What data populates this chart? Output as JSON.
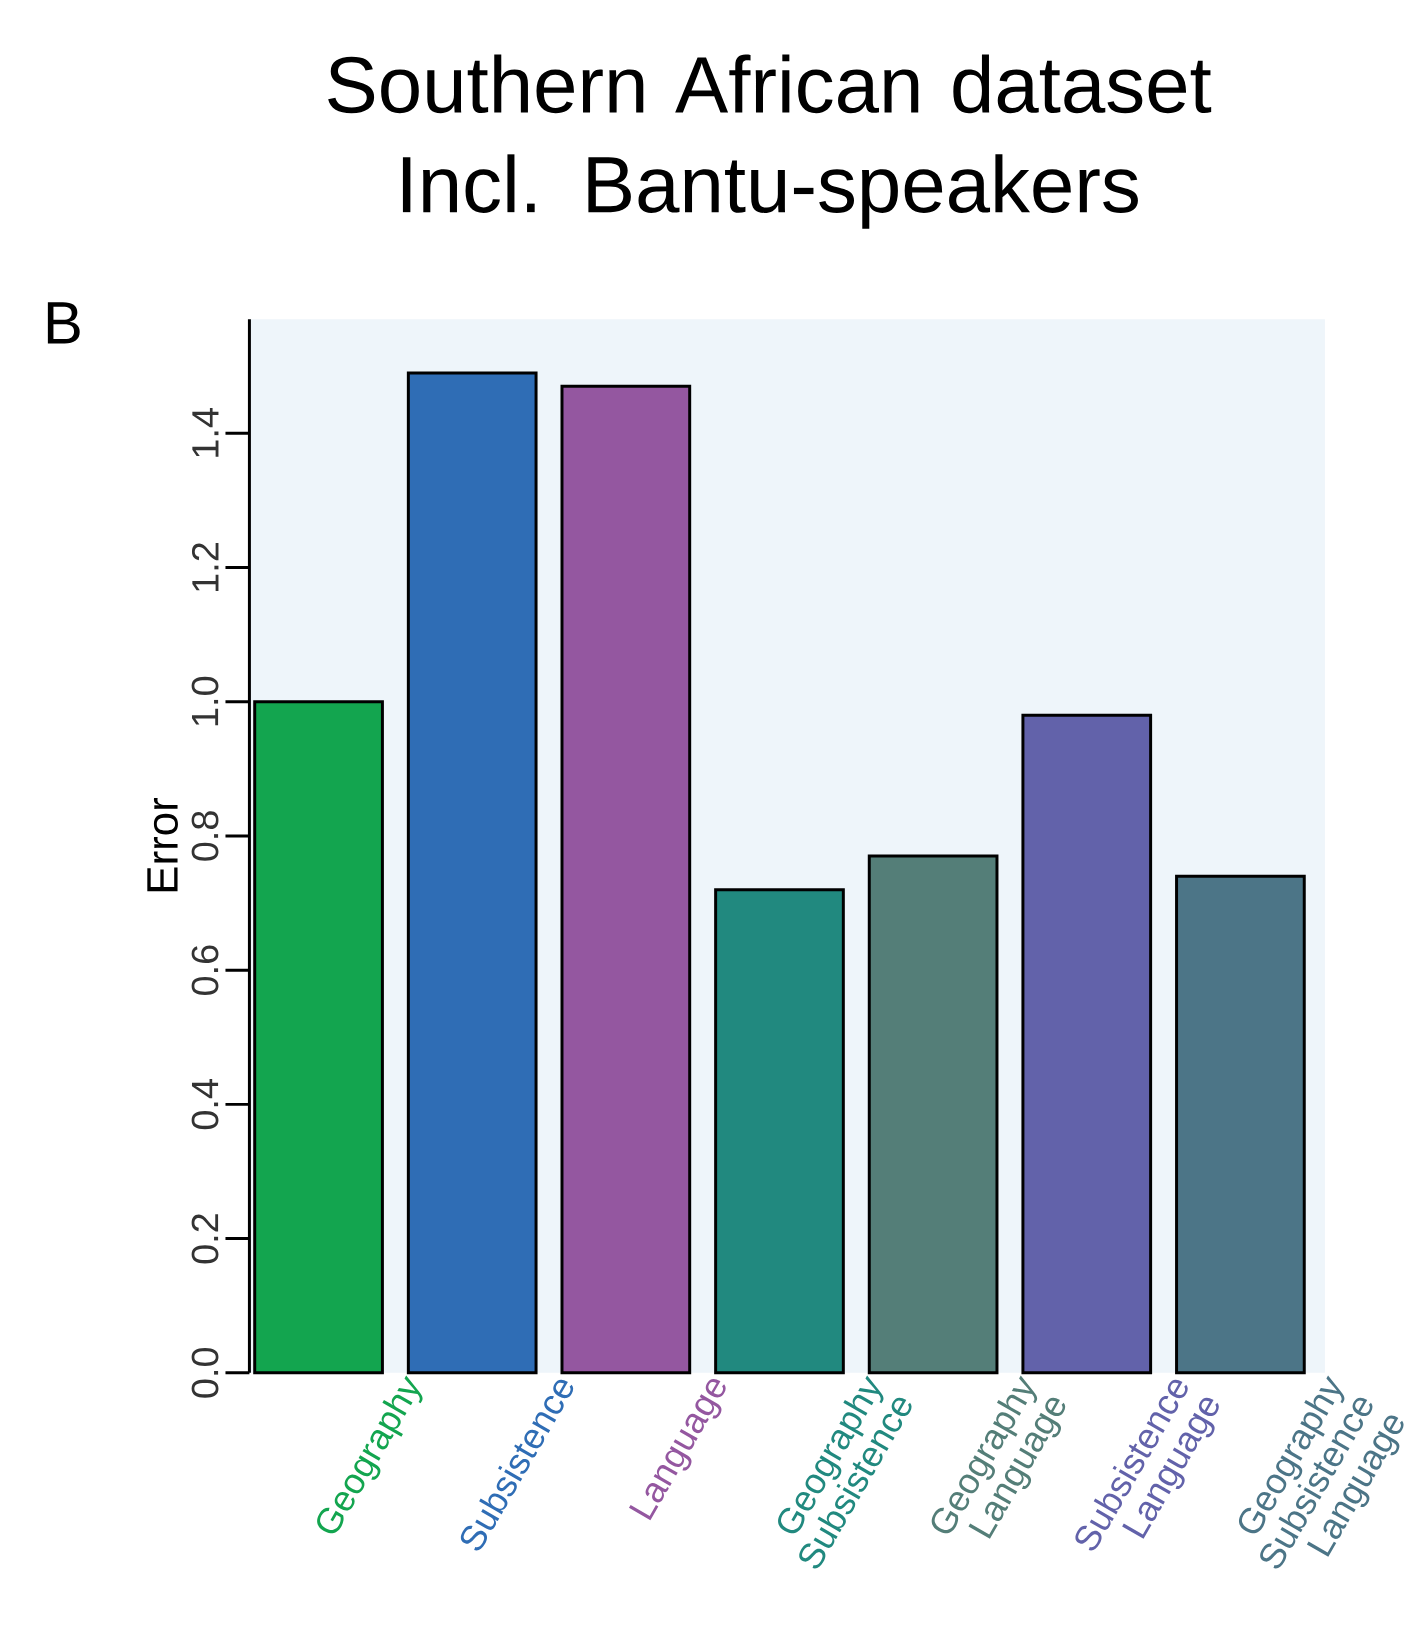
{
  "chart_data": {
    "type": "bar",
    "title": "Southern African dataset Incl. Bantu-speakers",
    "ylabel": "Error",
    "annotations": [
      "B"
    ],
    "categories": [
      "Geography",
      "Subsistence",
      "Language",
      "Geography Subsistence",
      "Geography Language",
      "Subsistence Language",
      "Geography Subsistence Language"
    ],
    "values": [
      1.0,
      1.49,
      1.47,
      0.72,
      0.77,
      0.98,
      0.74
    ],
    "colors": [
      "#13a54f",
      "#2f6db5",
      "#9457a0",
      "#21897f",
      "#547e78",
      "#6262aa",
      "#4c7587"
    ],
    "ylim": [
      0,
      1.57
    ],
    "yticks": [
      {
        "value": 0,
        "label": "0.0"
      },
      0.2,
      0.4,
      0.6,
      0.8,
      {
        "value": 1.0,
        "label": "1.0"
      },
      1.2,
      1.4
    ],
    "grid": false
  }
}
